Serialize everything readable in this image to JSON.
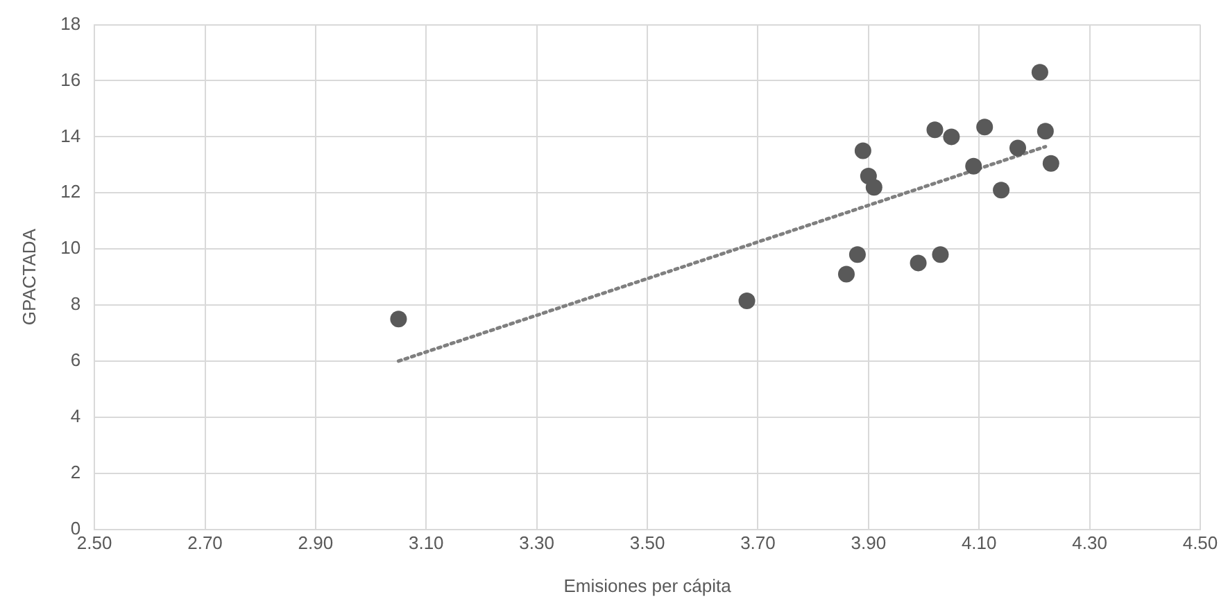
{
  "chart_data": {
    "type": "scatter",
    "xlabel": "Emisiones per cápita",
    "ylabel": "GPACTADA",
    "xlim": [
      2.5,
      4.5
    ],
    "xticks": [
      {
        "value": 2.5,
        "label": "2.50"
      },
      {
        "value": 2.7,
        "label": "2.70"
      },
      {
        "value": 2.9,
        "label": "2.90"
      },
      {
        "value": 3.1,
        "label": "3.10"
      },
      {
        "value": 3.3,
        "label": "3.30"
      },
      {
        "value": 3.5,
        "label": "3.50"
      },
      {
        "value": 3.7,
        "label": "3.70"
      },
      {
        "value": 3.9,
        "label": "3.90"
      },
      {
        "value": 4.1,
        "label": "4.10"
      },
      {
        "value": 4.3,
        "label": "4.30"
      },
      {
        "value": 4.5,
        "label": "4.50"
      }
    ],
    "ylim": [
      0,
      18
    ],
    "yticks": [
      0,
      2,
      4,
      6,
      8,
      10,
      12,
      14,
      16,
      18
    ],
    "grid": true,
    "legend": false,
    "marker": "circle",
    "series": [
      {
        "color": "#595959",
        "x": [
          3.05,
          3.68,
          3.86,
          3.88,
          3.99,
          4.03,
          3.89,
          3.9,
          3.91,
          4.14,
          4.09,
          4.23,
          4.17,
          4.22,
          4.02,
          4.05,
          4.11,
          4.21
        ],
        "values": [
          7.5,
          8.15,
          9.1,
          9.8,
          9.5,
          9.8,
          13.5,
          12.6,
          12.2,
          12.1,
          12.95,
          13.05,
          13.6,
          14.2,
          14.25,
          14.0,
          14.35,
          16.3
        ]
      },
      {
        "type": "line",
        "color": "#7f7f7f",
        "line_style": "dotted",
        "marker": "none",
        "x": [
          3.05,
          4.22
        ],
        "values": [
          6.0,
          13.65
        ]
      }
    ]
  }
}
